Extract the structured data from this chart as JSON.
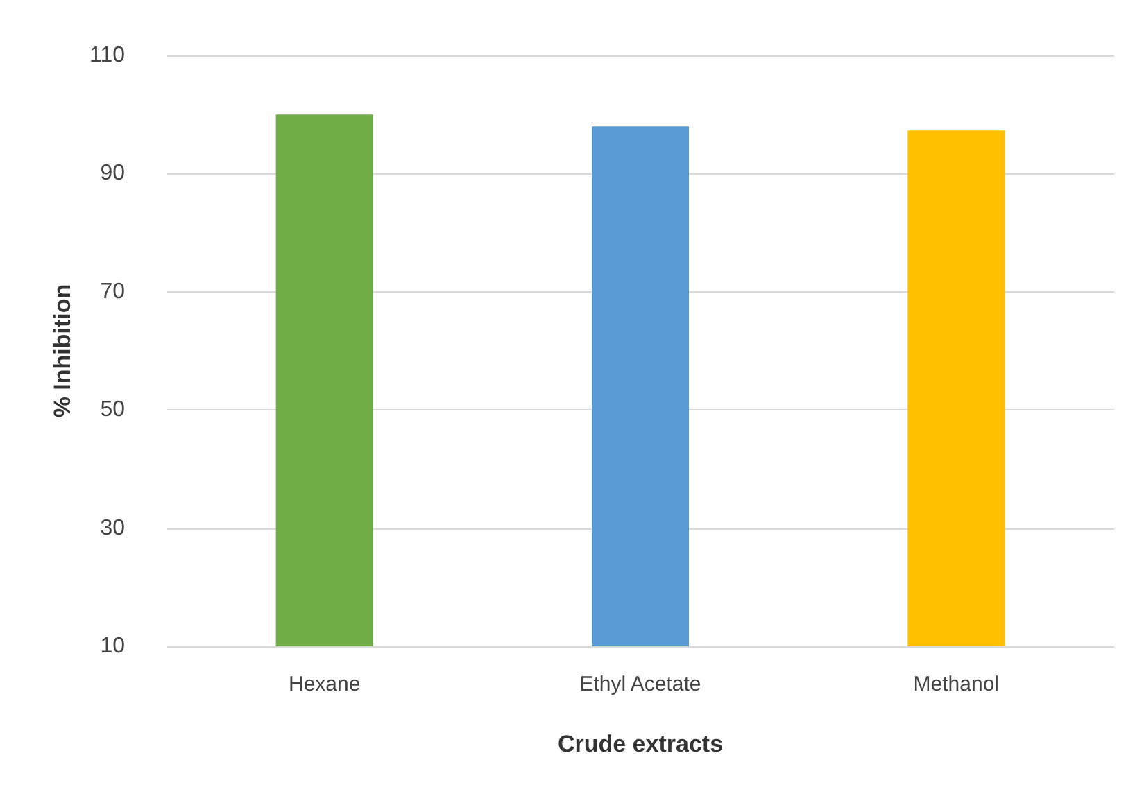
{
  "chart_data": {
    "type": "bar",
    "xlabel": "Crude extracts",
    "ylabel": "% Inhibition",
    "categories": [
      "Hexane",
      "Ethyl Acetate",
      "Methanol"
    ],
    "values": [
      100,
      98,
      97.3
    ],
    "colors": [
      "#70ad47",
      "#5b9bd5",
      "#ffc000"
    ],
    "ylim": [
      10,
      110
    ],
    "yticks": [
      10,
      30,
      50,
      70,
      90,
      110
    ],
    "grid": "y"
  }
}
